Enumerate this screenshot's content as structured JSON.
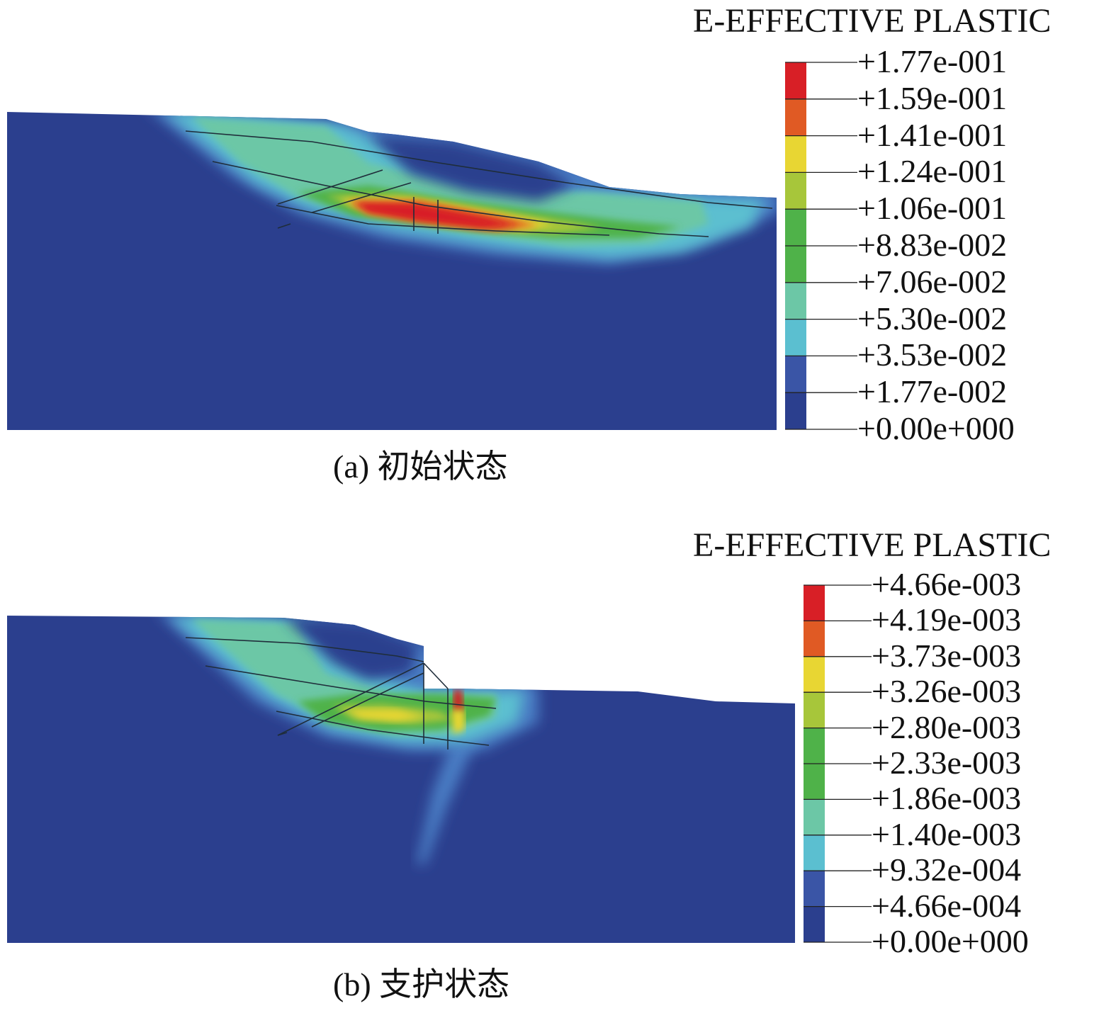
{
  "panels": [
    {
      "caption": "(a) 初始状态",
      "legend": {
        "title": "E-EFFECTIVE PLASTIC",
        "labels": [
          "+1.77e-001",
          "+1.59e-001",
          "+1.41e-001",
          "+1.24e-001",
          "+1.06e-001",
          "+8.83e-002",
          "+7.06e-002",
          "+5.30e-002",
          "+3.53e-002",
          "+1.77e-002",
          "+0.00e+000"
        ],
        "colors": [
          "#d81f26",
          "#e05a24",
          "#e8d633",
          "#a7c63a",
          "#4fb249",
          "#4fb249",
          "#6cc7a6",
          "#5bbfd0",
          "#3a55a6",
          "#2b3f8e"
        ]
      }
    },
    {
      "caption": "(b) 支护状态",
      "legend": {
        "title": "E-EFFECTIVE PLASTIC",
        "labels": [
          "+4.66e-003",
          "+4.19e-003",
          "+3.73e-003",
          "+3.26e-003",
          "+2.80e-003",
          "+2.33e-003",
          "+1.86e-003",
          "+1.40e-003",
          "+9.32e-004",
          "+4.66e-004",
          "+0.00e+000"
        ],
        "colors": [
          "#d81f26",
          "#e05a24",
          "#e8d633",
          "#a7c63a",
          "#4fb249",
          "#4fb249",
          "#6cc7a6",
          "#5bbfd0",
          "#3a55a6",
          "#2b3f8e"
        ]
      }
    }
  ],
  "colors": {
    "base": "#2b3f8e",
    "mid": "#4a7dc4",
    "cyan": "#5bbfd0",
    "teal": "#6cc7a6",
    "green": "#4fb249",
    "lime": "#a7c63a",
    "yellow": "#e8d633",
    "orange": "#e05a24",
    "red": "#d81f26"
  }
}
